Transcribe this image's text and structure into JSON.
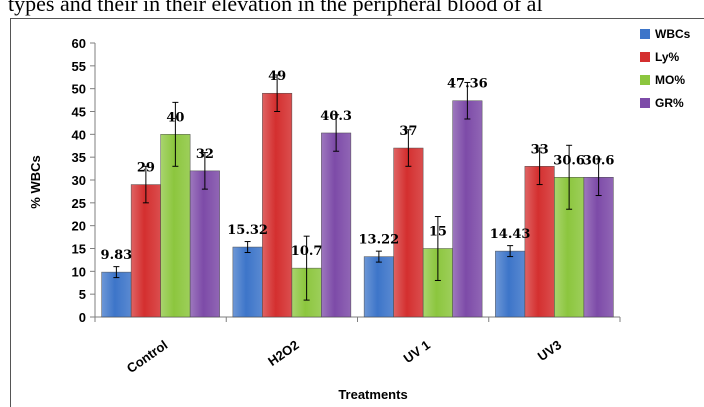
{
  "caption": "types and their in their elevation in the peripheral blood of al",
  "chart_data": {
    "type": "bar",
    "categories": [
      "Control",
      "H2O2",
      "UV 1",
      "UV3"
    ],
    "series": [
      {
        "name": "WBCs",
        "color": "#3d75c9",
        "values": [
          9.83,
          15.32,
          13.22,
          14.43
        ],
        "errors": [
          1.2,
          1.2,
          1.2,
          1.2
        ],
        "labels": [
          "9.83",
          "15.32",
          "13.22",
          "14.43"
        ]
      },
      {
        "name": "Ly%",
        "color": "#d42f2f",
        "values": [
          29,
          49,
          37,
          33
        ],
        "errors": [
          4,
          4,
          4,
          4
        ],
        "labels": [
          "29",
          "49",
          "37",
          "33"
        ]
      },
      {
        "name": "MO%",
        "color": "#8cc63e",
        "values": [
          40,
          10.7,
          15,
          30.6
        ],
        "errors": [
          7,
          7,
          7,
          7
        ],
        "labels": [
          "40",
          "10.7",
          "15",
          "30.6"
        ]
      },
      {
        "name": "GR%",
        "color": "#7d4ba8",
        "values": [
          32,
          40.3,
          47.36,
          30.6
        ],
        "errors": [
          4,
          4,
          4,
          4
        ],
        "labels": [
          "32",
          "40.3",
          "47.36",
          "30.6"
        ]
      }
    ],
    "xlabel": "Treatments",
    "ylabel": "% WBCs",
    "ylim": [
      0,
      60
    ],
    "yticks": [
      "0",
      "5",
      "10",
      "15",
      "20",
      "25",
      "30",
      "35",
      "40",
      "45",
      "50",
      "55",
      "60"
    ],
    "legend_position": "top-right",
    "grid": false
  }
}
